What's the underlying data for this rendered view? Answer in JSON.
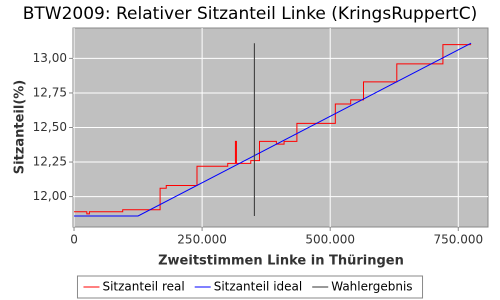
{
  "chart_data": {
    "type": "line",
    "title": "BTW2009: Relativer Sitzanteil Linke (KringsRuppertC)",
    "x_label": "Zweitstimmen Linke in Thüringen",
    "y_label": "Sitzanteil(%)",
    "xlim": [
      -2000,
      808000
    ],
    "ylim": [
      11.78,
      13.22
    ],
    "xticks": [
      0,
      {
        "value": 250000,
        "label": "250.000"
      },
      {
        "value": 500000,
        "label": "500.000"
      },
      {
        "value": 750000,
        "label": "750.000"
      }
    ],
    "yticks": [
      {
        "value": 12.0,
        "label": "12,00"
      },
      {
        "value": 12.25,
        "label": "12,25"
      },
      {
        "value": 12.5,
        "label": "12,50"
      },
      {
        "value": 12.75,
        "label": "12,75"
      },
      {
        "value": 13.0,
        "label": "13,00"
      }
    ],
    "grid": true,
    "background": "#c0c0c0",
    "series": [
      {
        "name": "Sitzanteil real",
        "color": "#ff0000",
        "x": [
          0,
          25000,
          25000,
          30000,
          30000,
          95000,
          95000,
          168000,
          168000,
          180000,
          180000,
          240000,
          240000,
          300000,
          300000,
          315000,
          315000,
          317000,
          317000,
          345000,
          345000,
          362000,
          362000,
          395000,
          395000,
          410000,
          410000,
          435000,
          435000,
          510000,
          510000,
          540000,
          540000,
          565000,
          565000,
          630000,
          630000,
          720000,
          720000,
          775000
        ],
        "values": [
          11.89,
          11.89,
          11.875,
          11.875,
          11.89,
          11.89,
          11.905,
          11.905,
          12.06,
          12.06,
          12.08,
          12.08,
          12.22,
          12.22,
          12.24,
          12.24,
          12.4,
          12.4,
          12.24,
          12.24,
          12.26,
          12.26,
          12.4,
          12.4,
          12.38,
          12.38,
          12.4,
          12.4,
          12.53,
          12.53,
          12.67,
          12.67,
          12.7,
          12.7,
          12.83,
          12.83,
          12.96,
          12.96,
          13.1,
          13.1
        ]
      },
      {
        "name": "Sitzanteil ideal",
        "color": "#0000ff",
        "x": [
          0,
          125000,
          775000
        ],
        "values": [
          11.86,
          11.86,
          13.11
        ]
      },
      {
        "name": "Wahlergebnis",
        "color": "#333333",
        "x": [
          352000,
          352000
        ],
        "values": [
          11.86,
          13.11
        ]
      }
    ]
  }
}
